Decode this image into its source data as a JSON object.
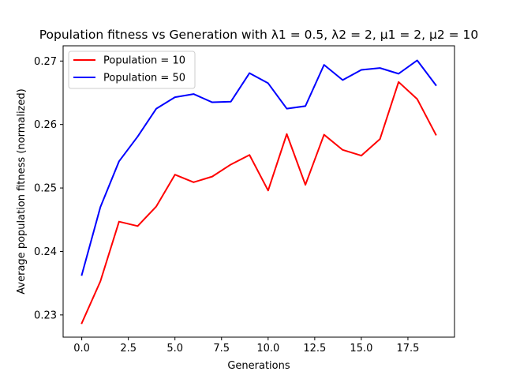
{
  "chart_data": {
    "type": "line",
    "title": "Population fitness vs Generation with λ1 = 0.5, λ2 = 2, μ1 = 2, μ2 = 10",
    "xlabel": "Generations",
    "ylabel": "Average population fitness (normalized)",
    "xlim": [
      -1.0,
      20.0
    ],
    "ylim": [
      0.2265,
      0.2724
    ],
    "xticks": [
      0.0,
      2.5,
      5.0,
      7.5,
      10.0,
      12.5,
      15.0,
      17.5
    ],
    "xtick_labels": [
      "0.0",
      "2.5",
      "5.0",
      "7.5",
      "10.0",
      "12.5",
      "15.0",
      "17.5"
    ],
    "yticks": [
      0.23,
      0.24,
      0.25,
      0.26,
      0.27
    ],
    "ytick_labels": [
      "0.23",
      "0.24",
      "0.25",
      "0.26",
      "0.27"
    ],
    "grid": false,
    "legend_position": "top-left",
    "x": [
      0,
      1,
      2,
      3,
      4,
      5,
      6,
      7,
      8,
      9,
      10,
      11,
      12,
      13,
      14,
      15,
      16,
      17,
      18,
      19
    ],
    "series": [
      {
        "name": "Population = 10",
        "color": "#ff0000",
        "values": [
          0.2287,
          0.2353,
          0.2447,
          0.244,
          0.2471,
          0.2521,
          0.2509,
          0.2518,
          0.2537,
          0.2552,
          0.2496,
          0.2585,
          0.2505,
          0.2584,
          0.256,
          0.2551,
          0.2577,
          0.2667,
          0.264,
          0.2584
        ]
      },
      {
        "name": "Population = 50",
        "color": "#0000ff",
        "values": [
          0.2363,
          0.247,
          0.2542,
          0.2581,
          0.2625,
          0.2643,
          0.2648,
          0.2635,
          0.2636,
          0.2681,
          0.2665,
          0.2625,
          0.2629,
          0.2694,
          0.267,
          0.2686,
          0.2689,
          0.268,
          0.2701,
          0.2662
        ]
      }
    ]
  }
}
